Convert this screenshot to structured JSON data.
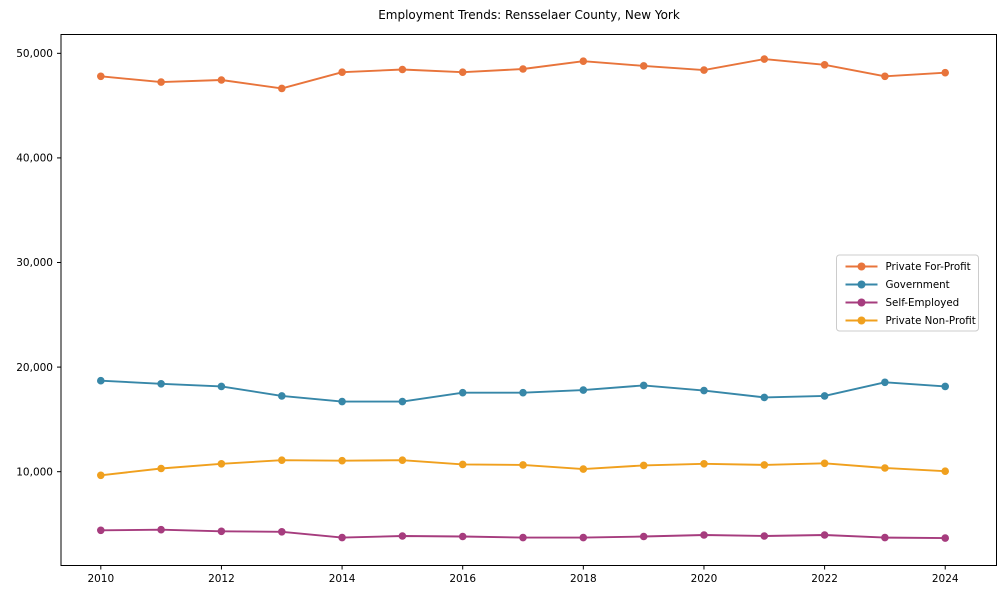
{
  "chart_data": {
    "type": "line",
    "title": "Employment Trends: Rensselaer County, New York",
    "xlabel": "",
    "ylabel": "",
    "grid": false,
    "legend_position": "center right",
    "x": [
      2010,
      2011,
      2012,
      2013,
      2014,
      2015,
      2016,
      2017,
      2018,
      2019,
      2020,
      2021,
      2022,
      2023,
      2024
    ],
    "x_ticks": [
      2010,
      2012,
      2014,
      2016,
      2018,
      2020,
      2022,
      2024
    ],
    "x_tick_labels": [
      "2010",
      "2012",
      "2014",
      "2016",
      "2018",
      "2020",
      "2022",
      "2024"
    ],
    "y_ticks": [
      10000,
      20000,
      30000,
      40000,
      50000
    ],
    "y_tick_labels": [
      "10,000",
      "20,000",
      "30,000",
      "40,000",
      "50,000"
    ],
    "xlim": [
      2009.34,
      2024.85
    ],
    "ylim": [
      1030,
      51800
    ],
    "series": [
      {
        "name": "Private For-Profit",
        "color": "#E8743B",
        "values": [
          47800,
          47250,
          47450,
          46650,
          48200,
          48450,
          48200,
          48500,
          49250,
          48800,
          48400,
          49450,
          48900,
          47800,
          48150
        ]
      },
      {
        "name": "Government",
        "color": "#3787A8",
        "values": [
          18700,
          18400,
          18150,
          17250,
          16700,
          16700,
          17550,
          17550,
          17800,
          18250,
          17750,
          17100,
          17250,
          18550,
          18150
        ]
      },
      {
        "name": "Self-Employed",
        "color": "#A63C7E",
        "values": [
          4400,
          4450,
          4300,
          4250,
          3700,
          3850,
          3800,
          3700,
          3700,
          3800,
          3950,
          3850,
          3950,
          3700,
          3650
        ]
      },
      {
        "name": "Private Non-Profit",
        "color": "#F0A01E",
        "values": [
          9650,
          10300,
          10750,
          11100,
          11050,
          11100,
          10700,
          10650,
          10250,
          10600,
          10750,
          10650,
          10800,
          10350,
          10050
        ]
      }
    ],
    "axis_color": "#000000",
    "legend_border_color": "#cccccc",
    "background_color": "#ffffff"
  }
}
